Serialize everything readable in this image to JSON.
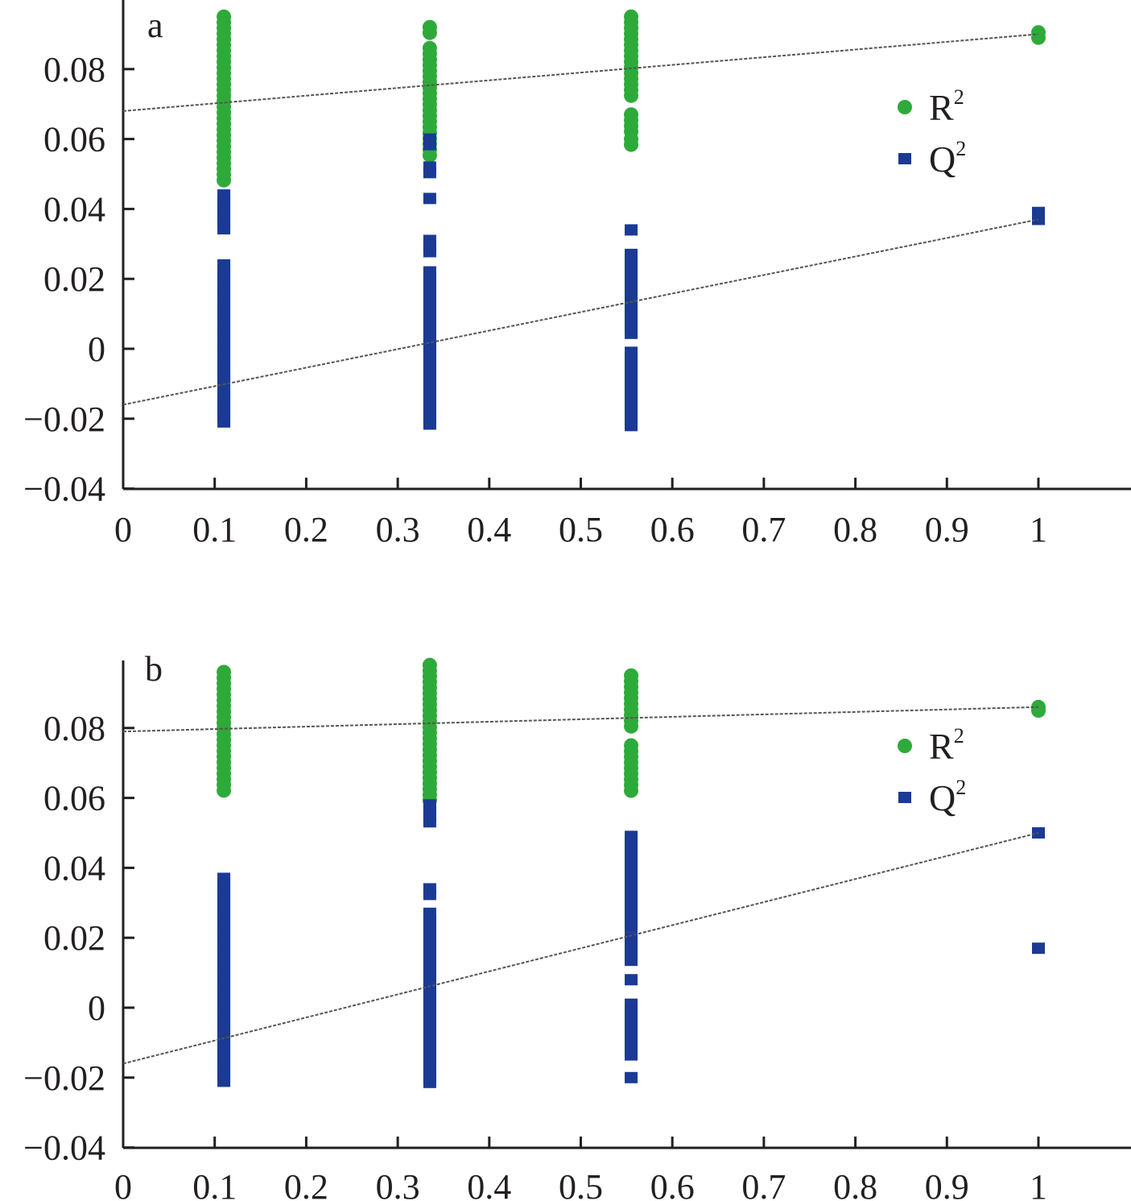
{
  "chart_data": [
    {
      "type": "scatter",
      "panel_label": "a",
      "xlim": [
        0,
        1.1
      ],
      "ylim": [
        -0.04,
        0.1
      ],
      "x_ticks": [
        "0",
        "0.1",
        "0.2",
        "0.3",
        "0.4",
        "0.5",
        "0.6",
        "0.7",
        "0.8",
        "0.9",
        "1"
      ],
      "y_ticks": [
        "0.08",
        "0.06",
        "0.04",
        "0.02",
        "0",
        "−0.02",
        "−0.04"
      ],
      "legend": {
        "position": "right",
        "entries": [
          {
            "base": "R",
            "sup": "2",
            "marker": "circle",
            "color": "#2eaa3a"
          },
          {
            "base": "Q",
            "sup": "2",
            "marker": "square",
            "color": "#1a3a94"
          }
        ]
      },
      "series": [
        {
          "name": "R²",
          "marker": "circle",
          "color": "#2eaa3a",
          "columns": [
            {
              "x": 0.11,
              "ranges": [
                [
                  0.048,
                  0.095
                ]
              ]
            },
            {
              "x": 0.335,
              "ranges": [
                [
                  0.055,
                  0.086
                ],
                [
                  0.09,
                  0.092
                ]
              ]
            },
            {
              "x": 0.555,
              "ranges": [
                [
                  0.057,
                  0.06
                ],
                [
                  0.062,
                  0.067
                ],
                [
                  0.072,
                  0.095
                ]
              ]
            }
          ],
          "points": [
            {
              "x": 1.0,
              "y": 0.089
            },
            {
              "x": 1.0,
              "y": 0.0905
            }
          ],
          "trend": {
            "x": [
              0,
              1.0
            ],
            "y": [
              0.068,
              0.09
            ]
          }
        },
        {
          "name": "Q²",
          "marker": "square",
          "color": "#1a3a94",
          "columns": [
            {
              "x": 0.11,
              "ranges": [
                [
                  -0.022,
                  0.021
                ],
                [
                  0.022,
                  0.024
                ],
                [
                  0.033,
                  0.044
                ]
              ]
            },
            {
              "x": 0.335,
              "ranges": [
                [
                  -0.022,
                  0.022
                ],
                [
                  0.027,
                  0.031
                ],
                [
                  0.05,
                  0.052
                ],
                [
                  0.057,
                  0.06
                ]
              ]
            },
            {
              "x": 0.555,
              "ranges": [
                [
                  -0.022,
                  -0.001
                ],
                [
                  0.004,
                  0.027
                ]
              ]
            }
          ],
          "points": [
            {
              "x": 0.335,
              "y": 0.043
            },
            {
              "x": 0.555,
              "y": 0.034
            },
            {
              "x": 1.0,
              "y": 0.037
            },
            {
              "x": 1.0,
              "y": 0.039
            }
          ],
          "trend": {
            "x": [
              0,
              1.0
            ],
            "y": [
              -0.016,
              0.037
            ]
          }
        }
      ]
    },
    {
      "type": "scatter",
      "panel_label": "b",
      "xlim": [
        0,
        1.1
      ],
      "ylim": [
        -0.04,
        0.1
      ],
      "x_ticks": [
        "0",
        "0.1",
        "0.2",
        "0.3",
        "0.4",
        "0.5",
        "0.6",
        "0.7",
        "0.8",
        "0.9",
        "1"
      ],
      "y_ticks": [
        "0.08",
        "0.06",
        "0.04",
        "0.02",
        "0",
        "−0.02",
        "−0.04"
      ],
      "legend": {
        "position": "right",
        "entries": [
          {
            "base": "R",
            "sup": "2",
            "marker": "circle",
            "color": "#2eaa3a"
          },
          {
            "base": "Q",
            "sup": "2",
            "marker": "square",
            "color": "#1a3a94"
          }
        ]
      },
      "series": [
        {
          "name": "R²",
          "marker": "circle",
          "color": "#2eaa3a",
          "columns": [
            {
              "x": 0.11,
              "ranges": [
                [
                  0.062,
                  0.096
                ]
              ]
            },
            {
              "x": 0.335,
              "ranges": [
                [
                  0.058,
                  0.098
                ]
              ]
            },
            {
              "x": 0.555,
              "ranges": [
                [
                  0.062,
                  0.075
                ],
                [
                  0.08,
                  0.095
                ]
              ]
            }
          ],
          "points": [
            {
              "x": 1.0,
              "y": 0.085
            },
            {
              "x": 1.0,
              "y": 0.086
            }
          ],
          "trend": {
            "x": [
              0,
              1.0
            ],
            "y": [
              0.079,
              0.086
            ]
          }
        },
        {
          "name": "Q²",
          "marker": "square",
          "color": "#1a3a94",
          "columns": [
            {
              "x": 0.11,
              "ranges": [
                [
                  -0.022,
                  0.037
                ]
              ]
            },
            {
              "x": 0.335,
              "ranges": [
                [
                  -0.022,
                  0.027
                ],
                [
                  0.032,
                  0.034
                ],
                [
                  0.052,
                  0.058
                ]
              ]
            },
            {
              "x": 0.555,
              "ranges": [
                [
                  -0.015,
                  0.001
                ],
                [
                  0.013,
                  0.02
                ],
                [
                  0.022,
                  0.049
                ]
              ]
            }
          ],
          "points": [
            {
              "x": 0.555,
              "y": 0.008
            },
            {
              "x": 0.555,
              "y": -0.02
            },
            {
              "x": 1.0,
              "y": 0.05
            },
            {
              "x": 1.0,
              "y": 0.017
            }
          ],
          "trend": {
            "x": [
              0,
              1.0
            ],
            "y": [
              -0.016,
              0.05
            ]
          }
        }
      ]
    }
  ]
}
